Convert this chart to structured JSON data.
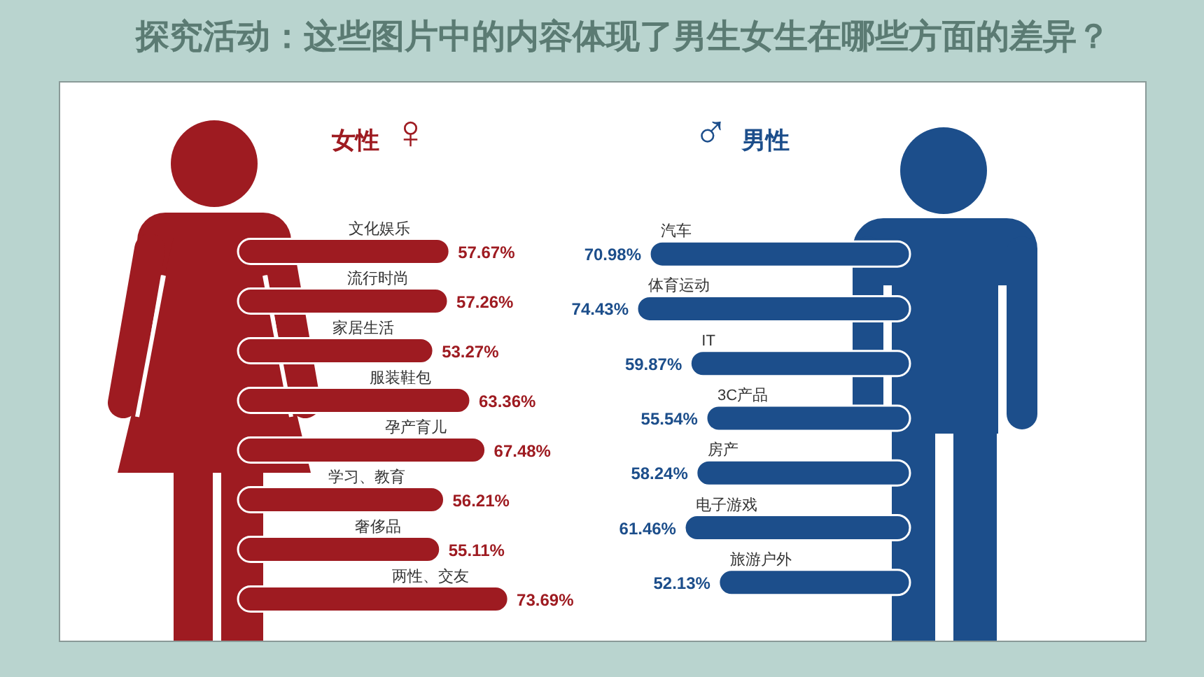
{
  "chart_data": [
    {
      "type": "other",
      "title": "探究活动：这些图片中的内容体现了男生女生在哪些方面的差异？"
    },
    {
      "type": "bar",
      "orientation": "horizontal",
      "title": "女性 ♀",
      "categories": [
        "文化娱乐",
        "流行时尚",
        "家居生活",
        "服装鞋包",
        "孕产育儿",
        "学习、教育",
        "奢侈品",
        "两性、交友"
      ],
      "values": [
        57.67,
        57.26,
        53.27,
        63.36,
        67.48,
        56.21,
        55.11,
        73.69
      ],
      "color": "#9e1b21",
      "value_labels": [
        "57.67%",
        "57.26%",
        "53.27%",
        "63.36%",
        "67.48%",
        "56.21%",
        "55.11%",
        "73.69%"
      ]
    },
    {
      "type": "bar",
      "orientation": "horizontal",
      "title": "♂ 男性",
      "categories": [
        "汽车",
        "体育运动",
        "IT",
        "3C产品",
        "房产",
        "电子游戏",
        "旅游户外"
      ],
      "values": [
        70.98,
        74.43,
        59.87,
        55.54,
        58.24,
        61.46,
        52.13
      ],
      "color": "#1c4e8b",
      "value_labels": [
        "70.98%",
        "74.43%",
        "59.87%",
        "55.54%",
        "58.24%",
        "61.46%",
        "52.13%"
      ]
    }
  ]
}
